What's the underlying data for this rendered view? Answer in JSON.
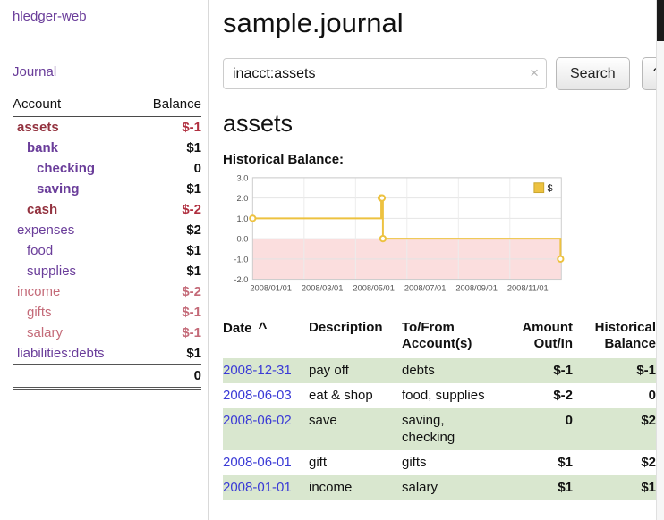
{
  "app": {
    "title": "hledger-web"
  },
  "sidebar": {
    "journal_link": "Journal",
    "accounts_header": {
      "account": "Account",
      "balance": "Balance"
    },
    "accounts": [
      {
        "name": "assets",
        "balance": "$-1",
        "depth": 0,
        "bold": true,
        "name_class": "neg-dark",
        "balance_class": "neg"
      },
      {
        "name": "bank",
        "balance": "$1",
        "depth": 1,
        "bold": true,
        "name_class": "acct-link",
        "balance_class": ""
      },
      {
        "name": "checking",
        "balance": "0",
        "depth": 2,
        "bold": true,
        "name_class": "acct-link",
        "balance_class": ""
      },
      {
        "name": "saving",
        "balance": "$1",
        "depth": 2,
        "bold": true,
        "name_class": "acct-link",
        "balance_class": ""
      },
      {
        "name": "cash",
        "balance": "$-2",
        "depth": 1,
        "bold": true,
        "name_class": "neg-dark",
        "balance_class": "neg"
      },
      {
        "name": "expenses",
        "balance": "$2",
        "depth": 0,
        "bold": false,
        "name_class": "acct-link",
        "balance_class": ""
      },
      {
        "name": "food",
        "balance": "$1",
        "depth": 1,
        "bold": false,
        "name_class": "acct-link",
        "balance_class": ""
      },
      {
        "name": "supplies",
        "balance": "$1",
        "depth": 1,
        "bold": false,
        "name_class": "acct-link",
        "balance_class": ""
      },
      {
        "name": "income",
        "balance": "$-2",
        "depth": 0,
        "bold": false,
        "name_class": "neg-soft",
        "balance_class": "neg-soft"
      },
      {
        "name": "gifts",
        "balance": "$-1",
        "depth": 1,
        "bold": false,
        "name_class": "neg-soft",
        "balance_class": "neg-soft"
      },
      {
        "name": "salary",
        "balance": "$-1",
        "depth": 1,
        "bold": false,
        "name_class": "neg-soft",
        "balance_class": "neg-soft"
      },
      {
        "name": "liabilities:debts",
        "balance": "$1",
        "depth": 0,
        "bold": false,
        "name_class": "acct-link",
        "balance_class": ""
      }
    ],
    "total": "0"
  },
  "header": {
    "title": "sample.journal"
  },
  "search": {
    "value": "inacct:assets",
    "clear_icon": "×",
    "search_button": "Search",
    "help_button": "?"
  },
  "main": {
    "account_title": "assets",
    "chart_title": "Historical Balance:"
  },
  "chart_data": {
    "type": "line",
    "step": true,
    "title": "Historical Balance",
    "ylim": [
      -2.0,
      3.0
    ],
    "y_ticks": [
      3.0,
      2.0,
      1.0,
      0.0,
      -1.0,
      -2.0
    ],
    "x_ticks": [
      "2008/01/01",
      "2008/03/01",
      "2008/05/01",
      "2008/07/01",
      "2008/09/01",
      "2008/11/01"
    ],
    "series": [
      {
        "name": "$",
        "color": "#edc240",
        "points": [
          [
            "2008-01-01",
            1
          ],
          [
            "2008-06-01",
            2
          ],
          [
            "2008-06-02",
            2
          ],
          [
            "2008-06-03",
            0
          ],
          [
            "2008-12-31",
            -1
          ]
        ]
      }
    ],
    "legend": {
      "label": "$",
      "position": "top-right"
    },
    "negative_region_color": "#fbdede",
    "grid": true
  },
  "register": {
    "headers": {
      "date": "Date",
      "sort_icon": "^",
      "description": "Description",
      "accounts": "To/From Account(s)",
      "amount": "Amount Out/In",
      "balance": "Historical Balance"
    },
    "rows": [
      {
        "date": "2008-12-31",
        "description": "pay off",
        "accounts": "debts",
        "amount": "$-1",
        "amount_negative": true,
        "balance": "$-1",
        "balance_negative": true
      },
      {
        "date": "2008-06-03",
        "description": "eat & shop",
        "accounts": "food, supplies",
        "amount": "$-2",
        "amount_negative": true,
        "balance": "0",
        "balance_negative": false
      },
      {
        "date": "2008-06-02",
        "description": "save",
        "accounts": "saving, checking",
        "amount": "0",
        "amount_negative": false,
        "balance": "$2",
        "balance_negative": false
      },
      {
        "date": "2008-06-01",
        "description": "gift",
        "accounts": "gifts",
        "amount": "$1",
        "amount_negative": false,
        "balance": "$2",
        "balance_negative": false
      },
      {
        "date": "2008-01-01",
        "description": "income",
        "accounts": "salary",
        "amount": "$1",
        "amount_negative": false,
        "balance": "$1",
        "balance_negative": false
      }
    ]
  }
}
